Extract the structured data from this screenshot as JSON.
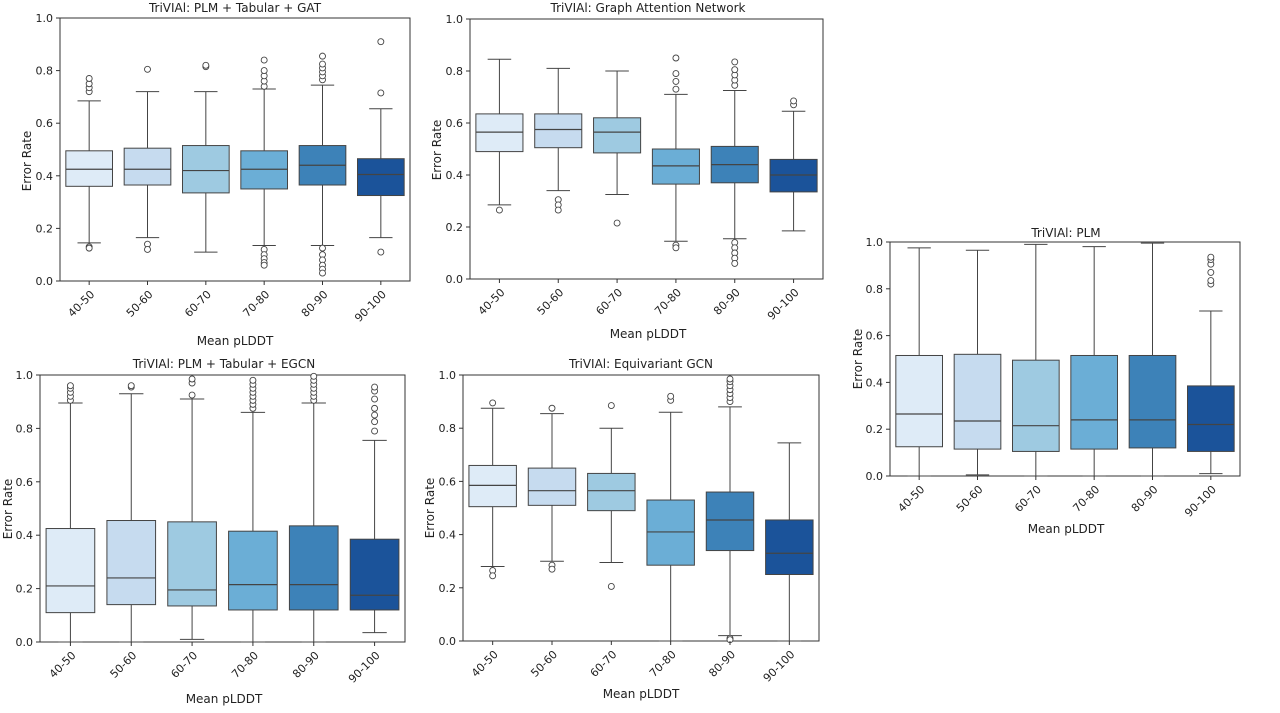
{
  "chart_data": [
    {
      "type": "box",
      "title": "TriVIAl: PLM + Tabular + GAT",
      "xlabel": "Mean pLDDT",
      "ylabel": "Error Rate",
      "ylim": [
        0,
        1.0
      ],
      "yticks": [
        "0.0",
        "0.2",
        "0.4",
        "0.6",
        "0.8",
        "1.0"
      ],
      "grid": false,
      "categories": [
        "40-50",
        "50-60",
        "60-70",
        "70-80",
        "80-90",
        "90-100"
      ],
      "boxes": [
        {
          "q1": 0.36,
          "median": 0.425,
          "q3": 0.495,
          "whisker_low": 0.145,
          "whisker_high": 0.685,
          "outliers": [
            0.13,
            0.125,
            0.72,
            0.735,
            0.75,
            0.77
          ]
        },
        {
          "q1": 0.365,
          "median": 0.425,
          "q3": 0.505,
          "whisker_low": 0.165,
          "whisker_high": 0.72,
          "outliers": [
            0.14,
            0.12,
            0.805
          ]
        },
        {
          "q1": 0.335,
          "median": 0.42,
          "q3": 0.515,
          "whisker_low": 0.11,
          "whisker_high": 0.72,
          "outliers": [
            0.815,
            0.82
          ]
        },
        {
          "q1": 0.35,
          "median": 0.425,
          "q3": 0.495,
          "whisker_low": 0.135,
          "whisker_high": 0.73,
          "outliers": [
            0.12,
            0.1,
            0.085,
            0.07,
            0.06,
            0.74,
            0.76,
            0.78,
            0.8,
            0.84
          ]
        },
        {
          "q1": 0.365,
          "median": 0.44,
          "q3": 0.515,
          "whisker_low": 0.135,
          "whisker_high": 0.745,
          "outliers": [
            0.125,
            0.1,
            0.08,
            0.06,
            0.045,
            0.03,
            0.765,
            0.78,
            0.795,
            0.81,
            0.825,
            0.855
          ]
        },
        {
          "q1": 0.325,
          "median": 0.405,
          "q3": 0.465,
          "whisker_low": 0.165,
          "whisker_high": 0.655,
          "outliers": [
            0.11,
            0.715,
            0.91
          ]
        }
      ]
    },
    {
      "type": "box",
      "title": "TriVIAl: Graph Attention Network",
      "xlabel": "Mean pLDDT",
      "ylabel": "Error Rate",
      "ylim": [
        0,
        1.0
      ],
      "yticks": [
        "0.0",
        "0.2",
        "0.4",
        "0.6",
        "0.8",
        "1.0"
      ],
      "grid": false,
      "categories": [
        "40-50",
        "50-60",
        "60-70",
        "70-80",
        "80-90",
        "90-100"
      ],
      "boxes": [
        {
          "q1": 0.49,
          "median": 0.565,
          "q3": 0.635,
          "whisker_low": 0.285,
          "whisker_high": 0.845,
          "outliers": [
            0.265
          ]
        },
        {
          "q1": 0.505,
          "median": 0.575,
          "q3": 0.635,
          "whisker_low": 0.34,
          "whisker_high": 0.81,
          "outliers": [
            0.305,
            0.285,
            0.265
          ]
        },
        {
          "q1": 0.485,
          "median": 0.565,
          "q3": 0.62,
          "whisker_low": 0.325,
          "whisker_high": 0.8,
          "outliers": [
            0.215
          ]
        },
        {
          "q1": 0.365,
          "median": 0.435,
          "q3": 0.5,
          "whisker_low": 0.145,
          "whisker_high": 0.71,
          "outliers": [
            0.13,
            0.12,
            0.73,
            0.76,
            0.79,
            0.85
          ]
        },
        {
          "q1": 0.37,
          "median": 0.44,
          "q3": 0.51,
          "whisker_low": 0.155,
          "whisker_high": 0.725,
          "outliers": [
            0.14,
            0.12,
            0.1,
            0.08,
            0.06,
            0.745,
            0.765,
            0.785,
            0.805,
            0.835
          ]
        },
        {
          "q1": 0.335,
          "median": 0.4,
          "q3": 0.46,
          "whisker_low": 0.185,
          "whisker_high": 0.645,
          "outliers": [
            0.67,
            0.685
          ]
        }
      ]
    },
    {
      "type": "box",
      "title": "TriVIAl: PLM",
      "xlabel": "Mean pLDDT",
      "ylabel": "Error Rate",
      "ylim": [
        0,
        1.0
      ],
      "yticks": [
        "0.0",
        "0.2",
        "0.4",
        "0.6",
        "0.8",
        "1.0"
      ],
      "grid": false,
      "categories": [
        "40-50",
        "50-60",
        "60-70",
        "70-80",
        "80-90",
        "90-100"
      ],
      "boxes": [
        {
          "q1": 0.125,
          "median": 0.265,
          "q3": 0.515,
          "whisker_low": 0.0,
          "whisker_high": 0.975,
          "outliers": []
        },
        {
          "q1": 0.115,
          "median": 0.235,
          "q3": 0.52,
          "whisker_low": 0.005,
          "whisker_high": 0.965,
          "outliers": []
        },
        {
          "q1": 0.105,
          "median": 0.215,
          "q3": 0.495,
          "whisker_low": 0.0,
          "whisker_high": 0.99,
          "outliers": []
        },
        {
          "q1": 0.115,
          "median": 0.24,
          "q3": 0.515,
          "whisker_low": 0.0,
          "whisker_high": 0.98,
          "outliers": []
        },
        {
          "q1": 0.12,
          "median": 0.24,
          "q3": 0.515,
          "whisker_low": 0.0,
          "whisker_high": 0.995,
          "outliers": []
        },
        {
          "q1": 0.105,
          "median": 0.22,
          "q3": 0.385,
          "whisker_low": 0.01,
          "whisker_high": 0.705,
          "outliers": [
            0.82,
            0.835,
            0.87,
            0.905,
            0.925,
            0.935
          ]
        }
      ]
    },
    {
      "type": "box",
      "title": "TriVIAl: PLM + Tabular + EGCN",
      "xlabel": "Mean pLDDT",
      "ylabel": "Error Rate",
      "ylim": [
        0,
        1.0
      ],
      "yticks": [
        "0.0",
        "0.2",
        "0.4",
        "0.6",
        "0.8",
        "1.0"
      ],
      "grid": false,
      "categories": [
        "40-50",
        "50-60",
        "60-70",
        "70-80",
        "80-90",
        "90-100"
      ],
      "boxes": [
        {
          "q1": 0.11,
          "median": 0.21,
          "q3": 0.425,
          "whisker_low": 0.0,
          "whisker_high": 0.895,
          "outliers": [
            0.905,
            0.92,
            0.935,
            0.95,
            0.96
          ]
        },
        {
          "q1": 0.14,
          "median": 0.24,
          "q3": 0.455,
          "whisker_low": 0.0,
          "whisker_high": 0.93,
          "outliers": [
            0.955,
            0.96
          ]
        },
        {
          "q1": 0.135,
          "median": 0.195,
          "q3": 0.45,
          "whisker_low": 0.01,
          "whisker_high": 0.91,
          "outliers": [
            0.925,
            0.97,
            0.985
          ]
        },
        {
          "q1": 0.12,
          "median": 0.215,
          "q3": 0.415,
          "whisker_low": 0.0,
          "whisker_high": 0.86,
          "outliers": [
            0.875,
            0.89,
            0.905,
            0.92,
            0.935,
            0.95,
            0.965,
            0.98
          ]
        },
        {
          "q1": 0.12,
          "median": 0.215,
          "q3": 0.435,
          "whisker_low": 0.0,
          "whisker_high": 0.895,
          "outliers": [
            0.905,
            0.92,
            0.935,
            0.95,
            0.965,
            0.98,
            0.995
          ]
        },
        {
          "q1": 0.12,
          "median": 0.175,
          "q3": 0.385,
          "whisker_low": 0.035,
          "whisker_high": 0.755,
          "outliers": [
            0.79,
            0.825,
            0.85,
            0.875,
            0.91,
            0.94,
            0.955
          ]
        }
      ]
    },
    {
      "type": "box",
      "title": "TriVIAl: Equivariant GCN",
      "xlabel": "Mean pLDDT",
      "ylabel": "Error Rate",
      "ylim": [
        0,
        1.0
      ],
      "yticks": [
        "0.0",
        "0.2",
        "0.4",
        "0.6",
        "0.8",
        "1.0"
      ],
      "grid": false,
      "categories": [
        "40-50",
        "50-60",
        "60-70",
        "70-80",
        "80-90",
        "90-100"
      ],
      "boxes": [
        {
          "q1": 0.505,
          "median": 0.585,
          "q3": 0.66,
          "whisker_low": 0.28,
          "whisker_high": 0.875,
          "outliers": [
            0.265,
            0.245,
            0.895
          ]
        },
        {
          "q1": 0.51,
          "median": 0.565,
          "q3": 0.65,
          "whisker_low": 0.3,
          "whisker_high": 0.855,
          "outliers": [
            0.285,
            0.27,
            0.875
          ]
        },
        {
          "q1": 0.49,
          "median": 0.565,
          "q3": 0.63,
          "whisker_low": 0.295,
          "whisker_high": 0.8,
          "outliers": [
            0.205,
            0.885
          ]
        },
        {
          "q1": 0.285,
          "median": 0.41,
          "q3": 0.53,
          "whisker_low": 0.0,
          "whisker_high": 0.86,
          "outliers": [
            0.905,
            0.92
          ]
        },
        {
          "q1": 0.34,
          "median": 0.455,
          "q3": 0.56,
          "whisker_low": 0.02,
          "whisker_high": 0.88,
          "outliers": [
            0.01,
            0.005,
            0.9,
            0.915,
            0.93,
            0.945,
            0.96,
            0.975,
            0.985
          ]
        },
        {
          "q1": 0.25,
          "median": 0.33,
          "q3": 0.455,
          "whisker_low": 0.0,
          "whisker_high": 0.745,
          "outliers": []
        }
      ]
    }
  ],
  "colors": [
    "#deebf7",
    "#c6dbef",
    "#9ecae1",
    "#6baed6",
    "#3d82b8",
    "#1b539a"
  ]
}
